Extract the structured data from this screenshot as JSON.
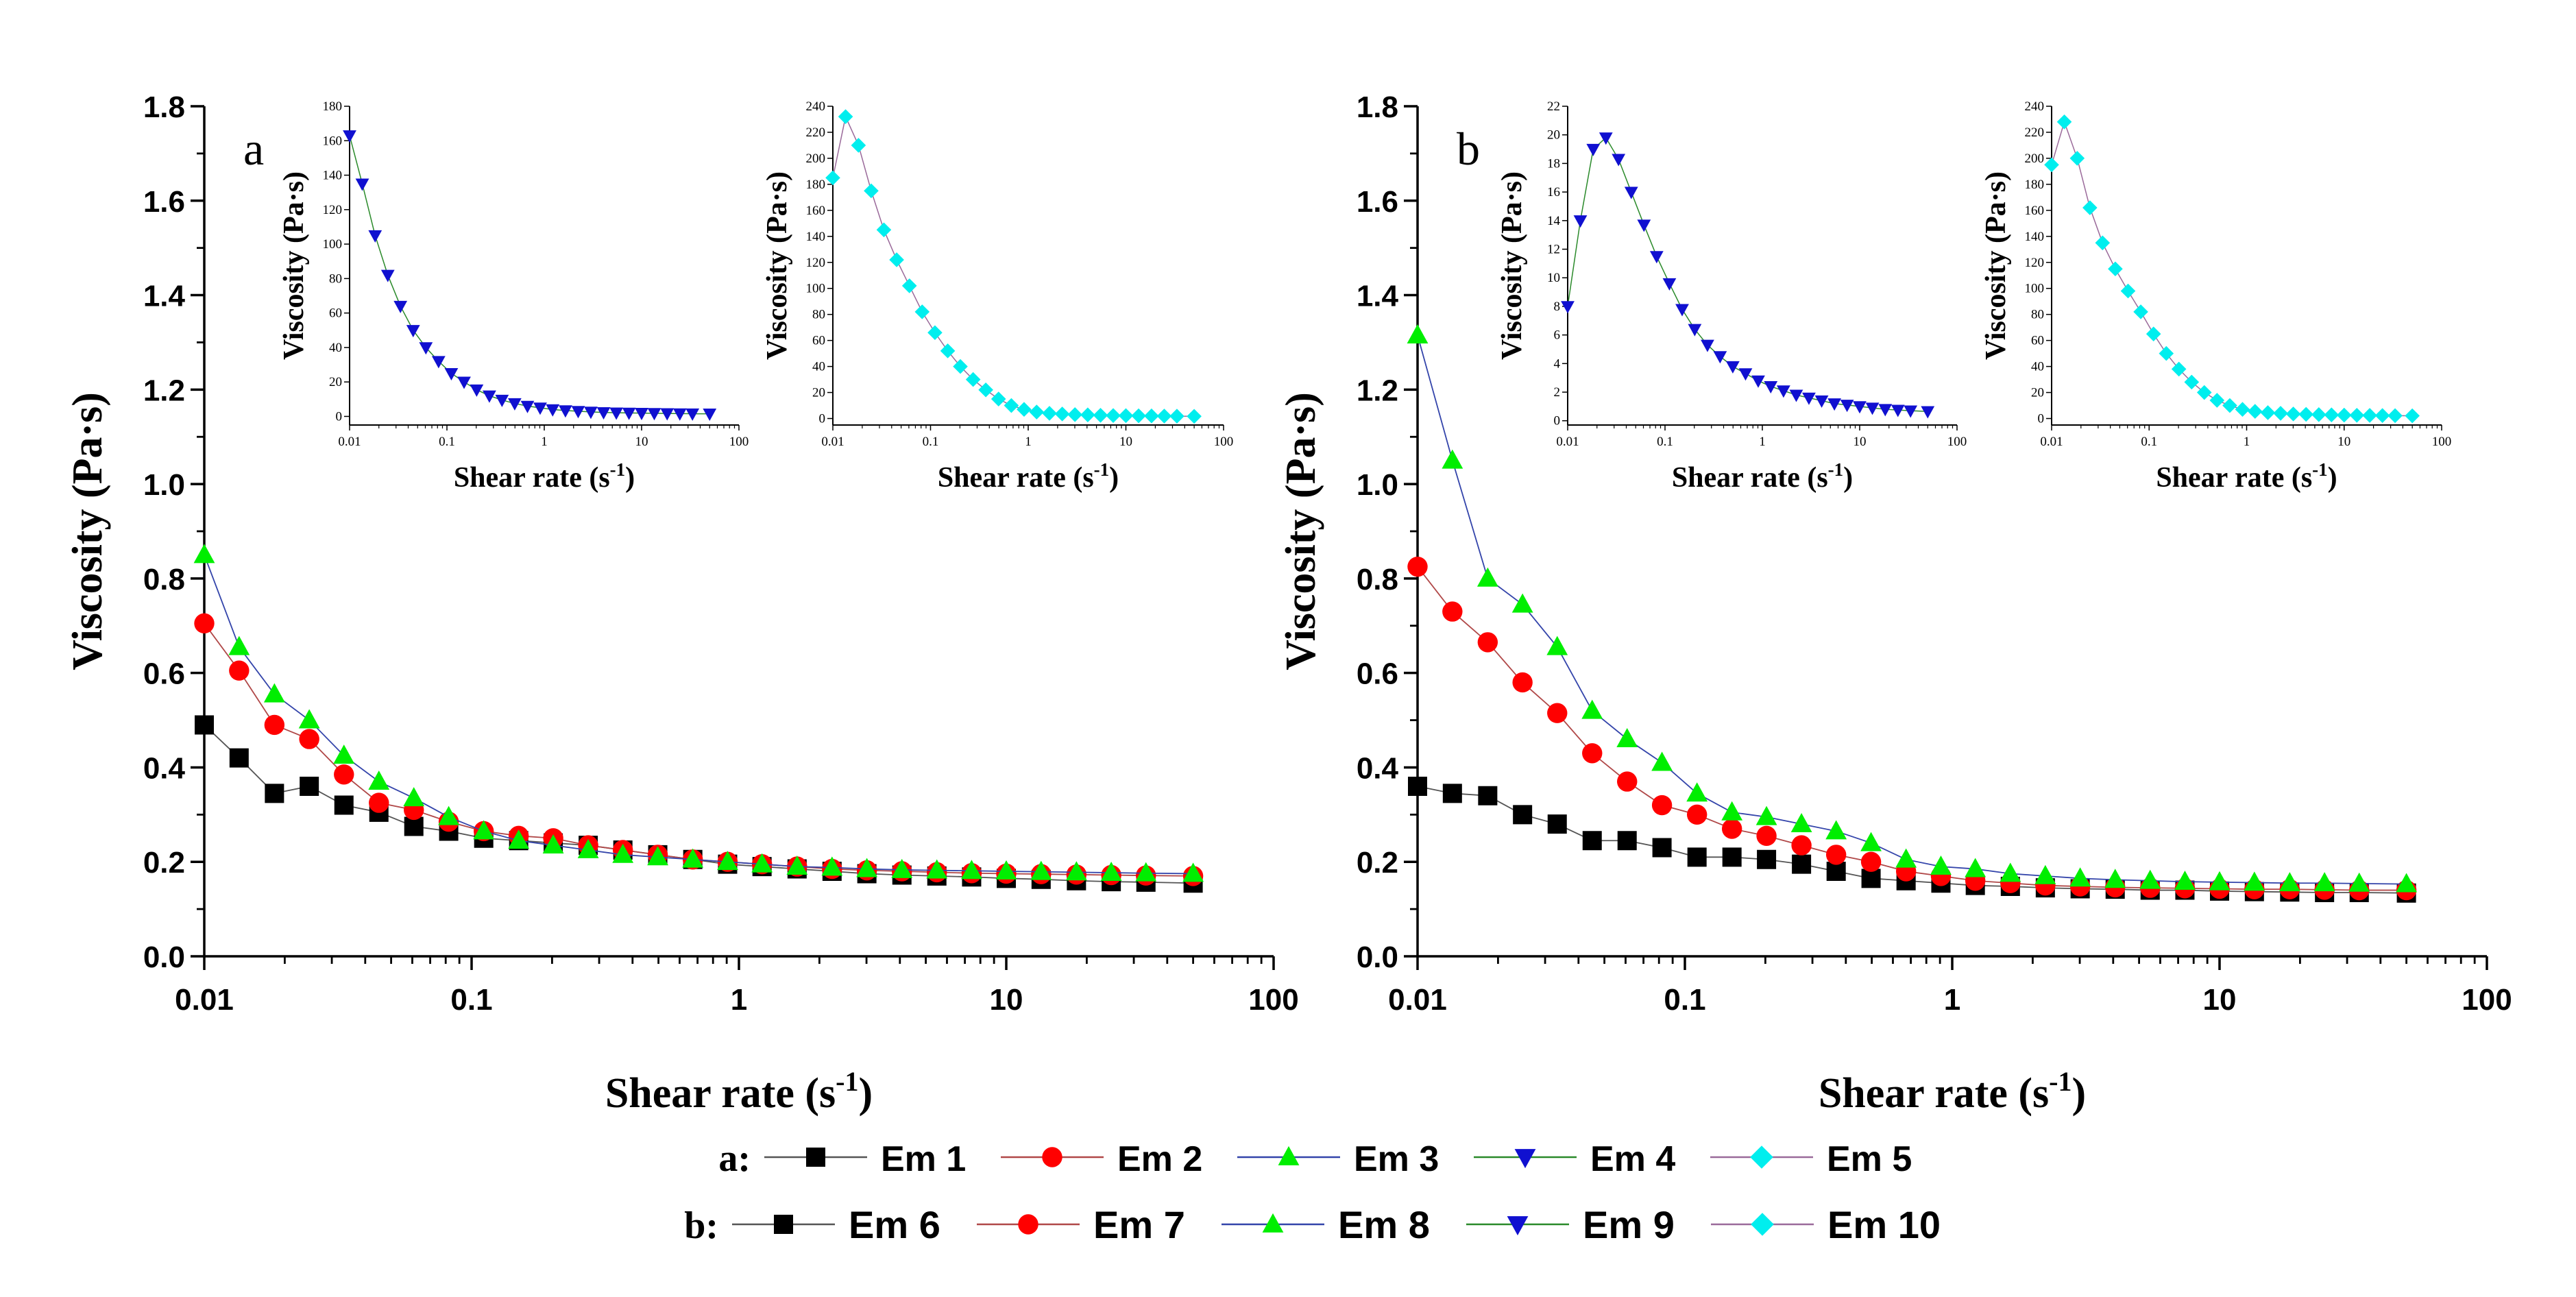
{
  "chart_data": [
    {
      "id": "main-a",
      "type": "line",
      "title": "",
      "panel_label": "a",
      "xlabel": "Shear rate (s",
      "xlabel_sup": "-1",
      "xlabel_end": ")",
      "ylabel": "Viscosity (Pa·s)",
      "xscale": "log",
      "xlim": [
        0.01,
        100
      ],
      "ylim": [
        0,
        1.8
      ],
      "xticks": [
        0.01,
        0.1,
        1,
        10,
        100
      ],
      "xtick_labels": [
        "0.01",
        "0.1",
        "1",
        "10",
        "100"
      ],
      "yticks": [
        0,
        0.2,
        0.4,
        0.6,
        0.8,
        1.0,
        1.2,
        1.4,
        1.6,
        1.8
      ],
      "ytick_labels": [
        "0.0",
        "0.2",
        "0.4",
        "0.6",
        "0.8",
        "1.0",
        "1.2",
        "1.4",
        "1.6",
        "1.8"
      ],
      "x": [
        0.01,
        0.0135,
        0.0183,
        0.0247,
        0.0333,
        0.045,
        0.0608,
        0.0821,
        0.111,
        0.15,
        0.202,
        0.273,
        0.368,
        0.497,
        0.672,
        0.907,
        1.22,
        1.65,
        2.23,
        3.01,
        4.07,
        5.5,
        7.42,
        10.0,
        13.5,
        18.3,
        24.7,
        33.3,
        50.0
      ],
      "series": [
        {
          "name": "Em 1",
          "marker": "square",
          "marker_color": "#000000",
          "line_color": "#555555",
          "values": [
            0.49,
            0.42,
            0.345,
            0.36,
            0.32,
            0.305,
            0.275,
            0.265,
            0.25,
            0.245,
            0.24,
            0.235,
            0.225,
            0.215,
            0.205,
            0.195,
            0.19,
            0.185,
            0.18,
            0.175,
            0.172,
            0.17,
            0.168,
            0.165,
            0.163,
            0.16,
            0.158,
            0.157,
            0.155
          ]
        },
        {
          "name": "Em 2",
          "marker": "circle",
          "marker_color": "#ff0000",
          "line_color": "#b04848",
          "values": [
            0.705,
            0.605,
            0.49,
            0.46,
            0.385,
            0.325,
            0.31,
            0.285,
            0.265,
            0.255,
            0.25,
            0.235,
            0.225,
            0.215,
            0.205,
            0.2,
            0.195,
            0.19,
            0.185,
            0.182,
            0.18,
            0.178,
            0.176,
            0.175,
            0.174,
            0.173,
            0.172,
            0.171,
            0.17
          ]
        },
        {
          "name": "Em 3",
          "marker": "triangle-up",
          "marker_color": "#00ee00",
          "line_color": "#3344aa",
          "values": [
            0.85,
            0.655,
            0.555,
            0.5,
            0.425,
            0.37,
            0.335,
            0.295,
            0.265,
            0.245,
            0.235,
            0.225,
            0.215,
            0.21,
            0.205,
            0.2,
            0.195,
            0.19,
            0.188,
            0.185,
            0.183,
            0.182,
            0.181,
            0.18,
            0.179,
            0.178,
            0.177,
            0.176,
            0.175
          ]
        }
      ]
    },
    {
      "id": "main-b",
      "type": "line",
      "title": "",
      "panel_label": "b",
      "xlabel": "Shear rate (s",
      "xlabel_sup": "-1",
      "xlabel_end": ")",
      "ylabel": "Viscosity (Pa·s)",
      "xscale": "log",
      "xlim": [
        0.01,
        100
      ],
      "ylim": [
        0,
        1.8
      ],
      "xticks": [
        0.01,
        0.1,
        1,
        10,
        100
      ],
      "xtick_labels": [
        "0.01",
        "0.1",
        "1",
        "10",
        "100"
      ],
      "yticks": [
        0,
        0.2,
        0.4,
        0.6,
        0.8,
        1.0,
        1.2,
        1.4,
        1.6,
        1.8
      ],
      "ytick_labels": [
        "0.0",
        "0.2",
        "0.4",
        "0.6",
        "0.8",
        "1.0",
        "1.2",
        "1.4",
        "1.6",
        "1.8"
      ],
      "x": [
        0.01,
        0.0135,
        0.0183,
        0.0247,
        0.0333,
        0.045,
        0.0608,
        0.0821,
        0.111,
        0.15,
        0.202,
        0.273,
        0.368,
        0.497,
        0.672,
        0.907,
        1.22,
        1.65,
        2.23,
        3.01,
        4.07,
        5.5,
        7.42,
        10.0,
        13.5,
        18.3,
        24.7,
        33.3,
        50.0
      ],
      "series": [
        {
          "name": "Em 6",
          "marker": "square",
          "marker_color": "#000000",
          "line_color": "#555555",
          "values": [
            0.36,
            0.345,
            0.34,
            0.3,
            0.28,
            0.245,
            0.245,
            0.23,
            0.21,
            0.21,
            0.205,
            0.195,
            0.18,
            0.165,
            0.16,
            0.155,
            0.15,
            0.148,
            0.145,
            0.143,
            0.142,
            0.14,
            0.14,
            0.138,
            0.137,
            0.136,
            0.135,
            0.135,
            0.134
          ]
        },
        {
          "name": "Em 7",
          "marker": "circle",
          "marker_color": "#ff0000",
          "line_color": "#b04848",
          "values": [
            0.825,
            0.73,
            0.665,
            0.58,
            0.515,
            0.43,
            0.37,
            0.32,
            0.3,
            0.27,
            0.255,
            0.235,
            0.215,
            0.2,
            0.18,
            0.17,
            0.16,
            0.155,
            0.15,
            0.148,
            0.146,
            0.145,
            0.144,
            0.143,
            0.142,
            0.142,
            0.141,
            0.14,
            0.14
          ]
        },
        {
          "name": "Em 8",
          "marker": "triangle-up",
          "marker_color": "#00ee00",
          "line_color": "#3344aa",
          "values": [
            1.315,
            1.05,
            0.8,
            0.745,
            0.655,
            0.52,
            0.46,
            0.41,
            0.345,
            0.305,
            0.295,
            0.28,
            0.265,
            0.24,
            0.205,
            0.19,
            0.185,
            0.175,
            0.17,
            0.165,
            0.162,
            0.16,
            0.158,
            0.157,
            0.156,
            0.155,
            0.155,
            0.154,
            0.153
          ]
        }
      ]
    },
    {
      "id": "inset-a1",
      "type": "line",
      "xscale": "log",
      "xlim": [
        0.01,
        100
      ],
      "ylim": [
        -5,
        180
      ],
      "xticks": [
        0.01,
        0.1,
        1,
        10,
        100
      ],
      "xtick_labels": [
        "0.01",
        "0.1",
        "1",
        "10",
        "100"
      ],
      "yticks": [
        0,
        20,
        40,
        60,
        80,
        100,
        120,
        140,
        160,
        180
      ],
      "ytick_labels": [
        "0",
        "20",
        "40",
        "60",
        "80",
        "100",
        "120",
        "140",
        "160",
        "180"
      ],
      "xlabel": "Shear rate (s",
      "xlabel_sup": "-1",
      "xlabel_end": ")",
      "ylabel": "Viscosity (Pa·s)",
      "x": [
        0.01,
        0.0135,
        0.0183,
        0.0247,
        0.0333,
        0.045,
        0.0608,
        0.0821,
        0.111,
        0.15,
        0.202,
        0.273,
        0.368,
        0.497,
        0.672,
        0.907,
        1.22,
        1.65,
        2.23,
        3.01,
        4.07,
        5.5,
        7.42,
        10.0,
        13.5,
        18.3,
        24.7,
        33.3,
        50.0
      ],
      "series": [
        {
          "name": "Em 4",
          "marker": "triangle-down",
          "marker_color": "#1010d0",
          "line_color": "#2a8a2a",
          "values": [
            163,
            135,
            105,
            82,
            64,
            50,
            40,
            32,
            25,
            20,
            15.5,
            12,
            9.5,
            7.5,
            6,
            5,
            4,
            3.4,
            3,
            2.6,
            2.3,
            2.1,
            2,
            1.9,
            1.8,
            1.7,
            1.6,
            1.55,
            1.5
          ]
        }
      ]
    },
    {
      "id": "inset-a2",
      "type": "line",
      "xscale": "log",
      "xlim": [
        0.01,
        100
      ],
      "ylim": [
        -5,
        240
      ],
      "xticks": [
        0.01,
        0.1,
        1,
        10,
        100
      ],
      "xtick_labels": [
        "0.01",
        "0.1",
        "1",
        "10",
        "100"
      ],
      "yticks": [
        0,
        20,
        40,
        60,
        80,
        100,
        120,
        140,
        160,
        180,
        200,
        220,
        240
      ],
      "ytick_labels": [
        "0",
        "20",
        "40",
        "60",
        "80",
        "100",
        "120",
        "140",
        "160",
        "180",
        "200",
        "220",
        "240"
      ],
      "xlabel": "Shear rate (s",
      "xlabel_sup": "-1",
      "xlabel_end": ")",
      "ylabel": "Viscosity (Pa·s)",
      "x": [
        0.01,
        0.0135,
        0.0183,
        0.0247,
        0.0333,
        0.045,
        0.0608,
        0.0821,
        0.111,
        0.15,
        0.202,
        0.273,
        0.368,
        0.497,
        0.672,
        0.907,
        1.22,
        1.65,
        2.23,
        3.01,
        4.07,
        5.5,
        7.42,
        10.0,
        13.5,
        18.3,
        24.7,
        33.3,
        50.0
      ],
      "series": [
        {
          "name": "Em 5",
          "marker": "diamond",
          "marker_color": "#00eeee",
          "line_color": "#9a6a9a",
          "values": [
            185,
            232,
            210,
            175,
            145,
            122,
            102,
            82,
            66,
            52,
            40,
            30,
            22,
            15,
            10,
            7,
            5,
            4,
            3.5,
            3,
            2.8,
            2.5,
            2.3,
            2.2,
            2.1,
            2,
            1.9,
            1.8,
            1.7
          ]
        }
      ]
    },
    {
      "id": "inset-b1",
      "type": "line",
      "xscale": "log",
      "xlim": [
        0.01,
        100
      ],
      "ylim": [
        -0.3,
        22
      ],
      "xticks": [
        0.01,
        0.1,
        1,
        10,
        100
      ],
      "xtick_labels": [
        "0.01",
        "0.1",
        "1",
        "10",
        "100"
      ],
      "yticks": [
        0,
        2,
        4,
        6,
        8,
        10,
        12,
        14,
        16,
        18,
        20,
        22
      ],
      "ytick_labels": [
        "0",
        "2",
        "4",
        "6",
        "8",
        "10",
        "12",
        "14",
        "16",
        "18",
        "20",
        "22"
      ],
      "xlabel": "Shear rate (s",
      "xlabel_sup": "-1",
      "xlabel_end": ")",
      "ylabel": "Viscosity (Pa·s)",
      "x": [
        0.01,
        0.0135,
        0.0183,
        0.0247,
        0.0333,
        0.045,
        0.0608,
        0.0821,
        0.111,
        0.15,
        0.202,
        0.273,
        0.368,
        0.497,
        0.672,
        0.907,
        1.22,
        1.65,
        2.23,
        3.01,
        4.07,
        5.5,
        7.42,
        10.0,
        13.5,
        18.3,
        24.7,
        33.3,
        50.0
      ],
      "series": [
        {
          "name": "Em 9",
          "marker": "triangle-down",
          "marker_color": "#1010d0",
          "line_color": "#2a8a2a",
          "values": [
            8,
            14,
            19,
            19.8,
            18.3,
            16,
            13.7,
            11.5,
            9.6,
            7.8,
            6.4,
            5.3,
            4.5,
            3.8,
            3.3,
            2.8,
            2.4,
            2.1,
            1.8,
            1.6,
            1.4,
            1.2,
            1.1,
            1.0,
            0.9,
            0.8,
            0.75,
            0.7,
            0.65
          ]
        }
      ]
    },
    {
      "id": "inset-b2",
      "type": "line",
      "xscale": "log",
      "xlim": [
        0.01,
        100
      ],
      "ylim": [
        -5,
        240
      ],
      "xticks": [
        0.01,
        0.1,
        1,
        10,
        100
      ],
      "xtick_labels": [
        "0.01",
        "0.1",
        "1",
        "10",
        "100"
      ],
      "yticks": [
        0,
        20,
        40,
        60,
        80,
        100,
        120,
        140,
        160,
        180,
        200,
        220,
        240
      ],
      "ytick_labels": [
        "0",
        "20",
        "40",
        "60",
        "80",
        "100",
        "120",
        "140",
        "160",
        "180",
        "200",
        "220",
        "240"
      ],
      "xlabel": "Shear rate (s",
      "xlabel_sup": "-1",
      "xlabel_end": ")",
      "ylabel": "Viscosity (Pa·s)",
      "x": [
        0.01,
        0.0135,
        0.0183,
        0.0247,
        0.0333,
        0.045,
        0.0608,
        0.0821,
        0.111,
        0.15,
        0.202,
        0.273,
        0.368,
        0.497,
        0.672,
        0.907,
        1.22,
        1.65,
        2.23,
        3.01,
        4.07,
        5.5,
        7.42,
        10.0,
        13.5,
        18.3,
        24.7,
        33.3,
        50.0
      ],
      "series": [
        {
          "name": "Em 10",
          "marker": "diamond",
          "marker_color": "#00eeee",
          "line_color": "#9a6a9a",
          "values": [
            195,
            228,
            200,
            162,
            135,
            115,
            98,
            82,
            65,
            50,
            38,
            28,
            20,
            14,
            10,
            7,
            5.5,
            4.5,
            4,
            3.5,
            3.2,
            3,
            2.8,
            2.6,
            2.5,
            2.4,
            2.3,
            2.2,
            2.1
          ]
        }
      ]
    }
  ],
  "legend": {
    "a": {
      "prefix": "a:",
      "items": [
        {
          "label": "Em 1",
          "marker": "square",
          "marker_color": "#000000",
          "line_color": "#555555"
        },
        {
          "label": "Em 2",
          "marker": "circle",
          "marker_color": "#ff0000",
          "line_color": "#b04848"
        },
        {
          "label": "Em 3",
          "marker": "triangle-up",
          "marker_color": "#00ee00",
          "line_color": "#3344aa"
        },
        {
          "label": "Em 4",
          "marker": "triangle-down",
          "marker_color": "#1010d0",
          "line_color": "#2a8a2a"
        },
        {
          "label": "Em 5",
          "marker": "diamond",
          "marker_color": "#00eeee",
          "line_color": "#9a6a9a"
        }
      ]
    },
    "b": {
      "prefix": "b:",
      "items": [
        {
          "label": "Em 6",
          "marker": "square",
          "marker_color": "#000000",
          "line_color": "#555555"
        },
        {
          "label": "Em 7",
          "marker": "circle",
          "marker_color": "#ff0000",
          "line_color": "#b04848"
        },
        {
          "label": "Em 8",
          "marker": "triangle-up",
          "marker_color": "#00ee00",
          "line_color": "#3344aa"
        },
        {
          "label": "Em 9",
          "marker": "triangle-down",
          "marker_color": "#1010d0",
          "line_color": "#2a8a2a"
        },
        {
          "label": "Em 10",
          "marker": "diamond",
          "marker_color": "#00eeee",
          "line_color": "#9a6a9a"
        }
      ]
    }
  }
}
